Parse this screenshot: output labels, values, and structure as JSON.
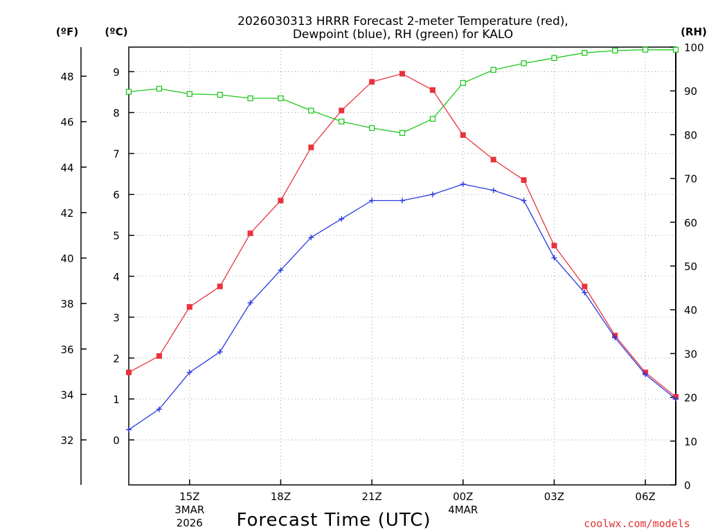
{
  "chart_data": {
    "type": "line",
    "title_line1": "2026030313 HRRR Forecast 2-meter Temperature (red),",
    "title_line2": "Dewpoint (blue), RH (green) for KALO",
    "xlabel": "Forecast Time (UTC)",
    "left_f_unit": "(ºF)",
    "left_c_unit": "(ºC)",
    "right_unit": "(RH)",
    "credit": "coolwx.com/models",
    "x_hours": [
      13,
      14,
      15,
      16,
      17,
      18,
      19,
      20,
      21,
      22,
      23,
      24,
      25,
      26,
      27,
      28,
      29,
      30,
      31
    ],
    "x_ticks": [
      {
        "hour": 15,
        "label": "15Z",
        "sub1": "3MAR",
        "sub2": "2026"
      },
      {
        "hour": 18,
        "label": "18Z",
        "sub1": "",
        "sub2": ""
      },
      {
        "hour": 21,
        "label": "21Z",
        "sub1": "",
        "sub2": ""
      },
      {
        "hour": 24,
        "label": "00Z",
        "sub1": "4MAR",
        "sub2": ""
      },
      {
        "hour": 27,
        "label": "03Z",
        "sub1": "",
        "sub2": ""
      },
      {
        "hour": 30,
        "label": "06Z",
        "sub1": "",
        "sub2": ""
      }
    ],
    "celsius_range": [
      -1.1,
      9.6
    ],
    "celsius_ticks": [
      0,
      1,
      2,
      3,
      4,
      5,
      6,
      7,
      8,
      9
    ],
    "fahrenheit_ticks": [
      32,
      34,
      36,
      38,
      40,
      42,
      44,
      46,
      48
    ],
    "rh_range": [
      0,
      100
    ],
    "rh_ticks": [
      0,
      10,
      20,
      30,
      40,
      50,
      60,
      70,
      80,
      90,
      100
    ],
    "series": [
      {
        "name": "Temperature",
        "axis": "celsius",
        "color": "#e8323c",
        "marker": "filled-square",
        "values": [
          1.65,
          2.05,
          3.25,
          3.75,
          5.05,
          5.85,
          7.15,
          8.05,
          8.75,
          8.95,
          8.55,
          7.45,
          6.85,
          6.35,
          4.75,
          3.75,
          2.55,
          1.65,
          1.05
        ]
      },
      {
        "name": "Dewpoint",
        "axis": "celsius",
        "color": "#2838e0",
        "marker": "plus",
        "values": [
          0.25,
          0.75,
          1.65,
          2.15,
          3.35,
          4.15,
          4.95,
          5.4,
          5.85,
          5.85,
          6.0,
          6.25,
          6.1,
          5.85,
          4.45,
          3.6,
          2.5,
          1.6,
          1.0
        ]
      },
      {
        "name": "RH",
        "axis": "rh",
        "color": "#1ec81e",
        "marker": "open-square",
        "values": [
          89.8,
          90.5,
          89.3,
          89.1,
          88.3,
          88.3,
          85.5,
          83.0,
          81.5,
          80.4,
          83.6,
          91.8,
          94.8,
          96.3,
          97.5,
          98.7,
          99.2,
          99.4,
          99.4
        ]
      }
    ]
  }
}
